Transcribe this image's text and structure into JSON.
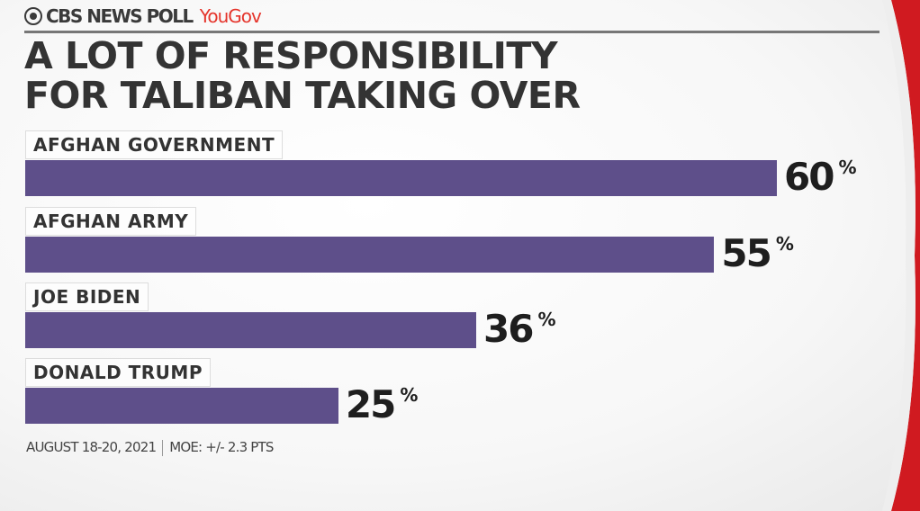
{
  "header": {
    "brand": "CBS NEWS POLL",
    "partner": "YouGov"
  },
  "colors": {
    "bar": "#5e4f8a",
    "accent": "#d01a20",
    "partner": "#e5352c"
  },
  "chart_data": {
    "type": "bar",
    "orientation": "horizontal",
    "title": "A LOT OF RESPONSIBILITY FOR TALIBAN TAKING OVER",
    "title_lines": [
      "A LOT OF RESPONSIBILITY",
      "FOR TALIBAN TAKING OVER"
    ],
    "categories": [
      "AFGHAN GOVERNMENT",
      "AFGHAN ARMY",
      "JOE BIDEN",
      "DONALD TRUMP"
    ],
    "values": [
      60,
      55,
      36,
      25
    ],
    "unit": "%",
    "xlim": [
      0,
      60
    ]
  },
  "footer": {
    "date": "AUGUST 18-20, 2021",
    "moe": "MOE: +/- 2.3 PTS"
  }
}
